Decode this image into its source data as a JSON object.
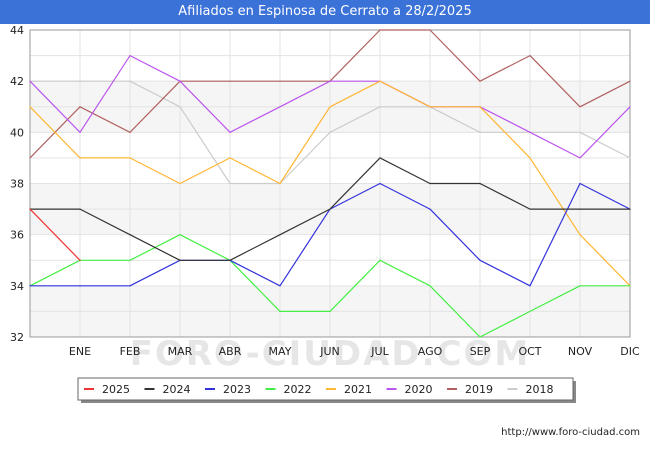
{
  "chart_data": {
    "type": "line",
    "title": "Afiliados en Espinosa de Cerrato a 28/2/2025",
    "xlabel": "",
    "ylabel": "",
    "categories": [
      "",
      "ENE",
      "FEB",
      "MAR",
      "ABR",
      "MAY",
      "JUN",
      "JUL",
      "AGO",
      "SEP",
      "OCT",
      "NOV",
      "DIC"
    ],
    "ylim": [
      32,
      44
    ],
    "yticks": [
      32,
      34,
      36,
      38,
      40,
      42,
      44
    ],
    "grid": true,
    "legend_position": "bottom",
    "series": [
      {
        "name": "2018",
        "color": "#cccccc",
        "values": [
          42,
          42,
          42,
          41,
          38,
          38,
          40,
          41,
          41,
          40,
          40,
          40,
          39
        ]
      },
      {
        "name": "2019",
        "color": "#b06060",
        "values": [
          39,
          41,
          40,
          42,
          42,
          42,
          42,
          44,
          44,
          42,
          43,
          41,
          42
        ]
      },
      {
        "name": "2020",
        "color": "#bb55ee",
        "values": [
          42,
          40,
          43,
          42,
          40,
          41,
          42,
          42,
          41,
          41,
          40,
          39,
          41
        ]
      },
      {
        "name": "2021",
        "color": "#ffb733",
        "values": [
          41,
          39,
          39,
          38,
          39,
          38,
          41,
          42,
          41,
          41,
          39,
          36,
          34
        ]
      },
      {
        "name": "2022",
        "color": "#44ee44",
        "values": [
          34,
          35,
          35,
          36,
          35,
          33,
          33,
          35,
          34,
          32,
          33,
          34,
          34
        ]
      },
      {
        "name": "2023",
        "color": "#3333dd",
        "values": [
          34,
          34,
          34,
          35,
          35,
          34,
          37,
          38,
          37,
          35,
          34,
          38,
          37
        ]
      },
      {
        "name": "2024",
        "color": "#333333",
        "values": [
          37,
          37,
          36,
          35,
          35,
          36,
          37,
          39,
          38,
          38,
          37,
          37,
          37
        ]
      },
      {
        "name": "2025",
        "color": "#ee3333",
        "values": [
          37,
          35,
          null,
          null,
          null,
          null,
          null,
          null,
          null,
          null,
          null,
          null,
          null
        ]
      }
    ],
    "legend_order": [
      "2025",
      "2024",
      "2023",
      "2022",
      "2021",
      "2020",
      "2019",
      "2018"
    ]
  },
  "footer": {
    "url": "http://www.foro-ciudad.com",
    "watermark": "FORO-CIUDAD.COM"
  }
}
